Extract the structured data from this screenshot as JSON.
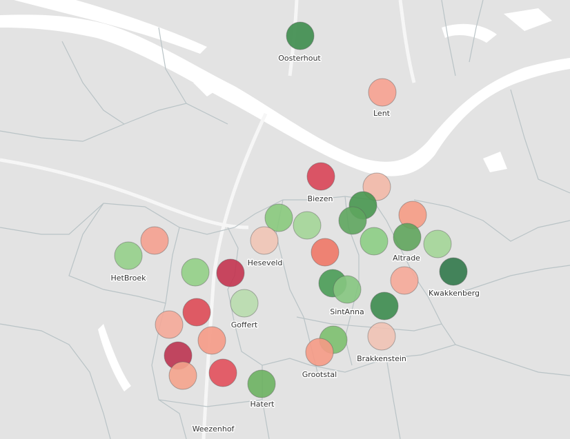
{
  "map": {
    "colors": {
      "background": "#e3e3e3",
      "river": "#ffffff",
      "boundary": "#b9c3c6",
      "road": "#f6f6f6",
      "label_text": "#333333"
    },
    "neighbourhood_labels": [
      {
        "name": "Oosterhout"
      },
      {
        "name": "Lent"
      },
      {
        "name": "Biezen"
      },
      {
        "name": "Heseveld"
      },
      {
        "name": "Altrade"
      },
      {
        "name": "HetBroek"
      },
      {
        "name": "Kwakkenberg"
      },
      {
        "name": "SintAnna"
      },
      {
        "name": "Goffert"
      },
      {
        "name": "Brakkenstein"
      },
      {
        "name": "Grootstal"
      },
      {
        "name": "Hatert"
      },
      {
        "name": "Weezenhof"
      }
    ],
    "markers": [
      {
        "color": "#3d8c4c"
      },
      {
        "color": "#f6a190"
      },
      {
        "color": "#d84456"
      },
      {
        "color": "#f2b8a7"
      },
      {
        "color": "#47964f"
      },
      {
        "color": "#88c97c"
      },
      {
        "color": "#a3d597"
      },
      {
        "color": "#5ea55e"
      },
      {
        "color": "#f0c4b5"
      },
      {
        "color": "#f59b84"
      },
      {
        "color": "#8ccd84"
      },
      {
        "color": "#a3d597"
      },
      {
        "color": "#5fa45c"
      },
      {
        "color": "#95cf89"
      },
      {
        "color": "#f4a08f"
      },
      {
        "color": "#92cf86"
      },
      {
        "color": "#c3334f"
      },
      {
        "color": "#ee7766"
      },
      {
        "color": "#499b55"
      },
      {
        "color": "#85c57f"
      },
      {
        "color": "#f5a898"
      },
      {
        "color": "#31784a"
      },
      {
        "color": "#3c8b4e"
      },
      {
        "color": "#dd4a55"
      },
      {
        "color": "#b8dcad"
      },
      {
        "color": "#f4a898"
      },
      {
        "color": "#f0c2b4"
      },
      {
        "color": "#7cbf6e"
      },
      {
        "color": "#bb3350"
      },
      {
        "color": "#f59a86"
      },
      {
        "color": "#f4a38c"
      },
      {
        "color": "#f59a85"
      },
      {
        "color": "#e14f5b"
      },
      {
        "color": "#6cb160"
      }
    ]
  }
}
